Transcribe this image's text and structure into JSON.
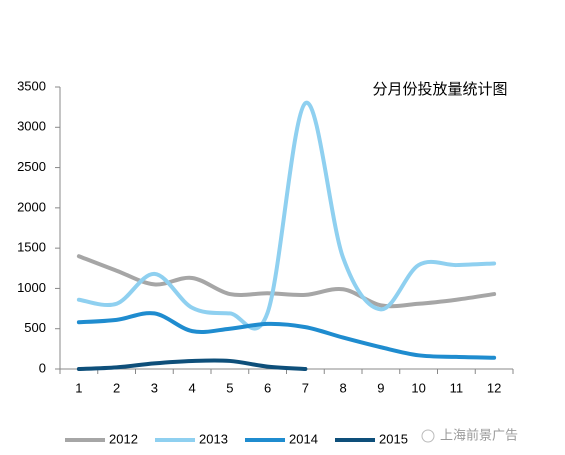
{
  "chart_data": {
    "type": "line",
    "title": "分月份投放量统计图",
    "categories": [
      "1",
      "2",
      "3",
      "4",
      "5",
      "6",
      "7",
      "8",
      "9",
      "10",
      "11",
      "12"
    ],
    "series": [
      {
        "name": "2012",
        "color": "#a6a6a6",
        "values": [
          1400,
          1220,
          1050,
          1130,
          930,
          940,
          920,
          990,
          790,
          810,
          860,
          930
        ]
      },
      {
        "name": "2013",
        "color": "#8fd0f0",
        "values": [
          860,
          810,
          1180,
          760,
          690,
          700,
          3300,
          1380,
          740,
          1290,
          1290,
          1310
        ]
      },
      {
        "name": "2014",
        "color": "#1f8ccf",
        "values": [
          580,
          610,
          690,
          470,
          500,
          560,
          520,
          390,
          270,
          170,
          150,
          140
        ]
      },
      {
        "name": "2015",
        "color": "#0e4f7a",
        "values": [
          0,
          20,
          70,
          100,
          100,
          30,
          0,
          null,
          null,
          null,
          null,
          null
        ]
      }
    ],
    "ylim": [
      0,
      3500
    ],
    "yticks": [
      0,
      500,
      1000,
      1500,
      2000,
      2500,
      3000,
      3500
    ],
    "watermark": "上海前景广告"
  }
}
